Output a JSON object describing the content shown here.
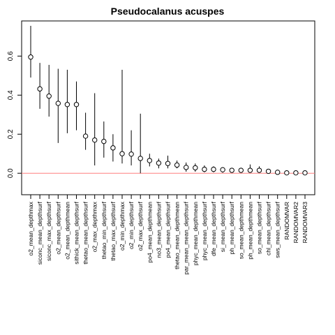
{
  "chart_data": {
    "type": "scatter",
    "title": "Pseudocalanus acuspes",
    "xlabel": "",
    "ylabel": "",
    "ylim": [
      -0.11,
      0.78
    ],
    "yticks": [
      0.0,
      0.2,
      0.4,
      0.6
    ],
    "yticklabels": [
      "0.0",
      "0.2",
      "0.4",
      "0.6"
    ],
    "grid": false,
    "reference_line": {
      "y": 0.0,
      "color": "#ff7f7f"
    },
    "categories": [
      "o2_mean_depthmax",
      "siconc_mean_depthsurf",
      "siconc_max_depthsurf",
      "o2_mean_depthsurf",
      "o2_mean_depthmean",
      "sithick_mean_depthsurf",
      "thetao_mean_depthsurf",
      "o2_max_depthmax",
      "thetao_min_depthsurf",
      "thetao_max_depthsurf",
      "o2_min_depthmax",
      "o2_min_depthsurf",
      "o2_max_depthsurf",
      "po4_mean_depthmean",
      "no3_mean_depthsurf",
      "po4_mean_depthsurf",
      "thetao_mean_depthmean",
      "par_mean_mean_depthsurf",
      "phyc_mean_depthmean",
      "phyc_mean_depthsurf",
      "dfe_mean_depthsurf",
      "si_mean_depthsurf",
      "ph_mean_depthsurf",
      "so_mean_depthmean",
      "ph_mean_depthmean",
      "so_mean_depthsurf",
      "chl_mean_depthsurf",
      "sws_mean_depthsurf",
      "RANDOMVAR",
      "RANDOMVAR2",
      "RANDOMVAR3"
    ],
    "values": [
      0.595,
      0.432,
      0.395,
      0.358,
      0.352,
      0.352,
      0.19,
      0.17,
      0.163,
      0.13,
      0.1,
      0.098,
      0.076,
      0.065,
      0.052,
      0.05,
      0.042,
      0.03,
      0.028,
      0.02,
      0.02,
      0.018,
      0.015,
      0.015,
      0.015,
      0.015,
      0.01,
      0.005,
      0.002,
      0.002,
      0.002
    ],
    "lower": [
      0.49,
      0.33,
      0.29,
      0.155,
      0.205,
      0.22,
      0.12,
      0.04,
      0.08,
      0.06,
      0.05,
      0.04,
      0.0,
      0.035,
      0.025,
      0.025,
      0.025,
      0.008,
      0.008,
      0.005,
      0.005,
      0.003,
      0.004,
      0.004,
      0.004,
      0.002,
      0.002,
      0.0,
      0.0,
      0.0,
      0.0
    ],
    "upper": [
      0.755,
      0.565,
      0.555,
      0.535,
      0.53,
      0.47,
      0.31,
      0.41,
      0.265,
      0.2,
      0.53,
      0.22,
      0.305,
      0.1,
      0.075,
      0.09,
      0.065,
      0.055,
      0.05,
      0.04,
      0.035,
      0.03,
      0.025,
      0.028,
      0.045,
      0.035,
      0.018,
      0.01,
      0.003,
      0.003,
      0.003
    ]
  }
}
